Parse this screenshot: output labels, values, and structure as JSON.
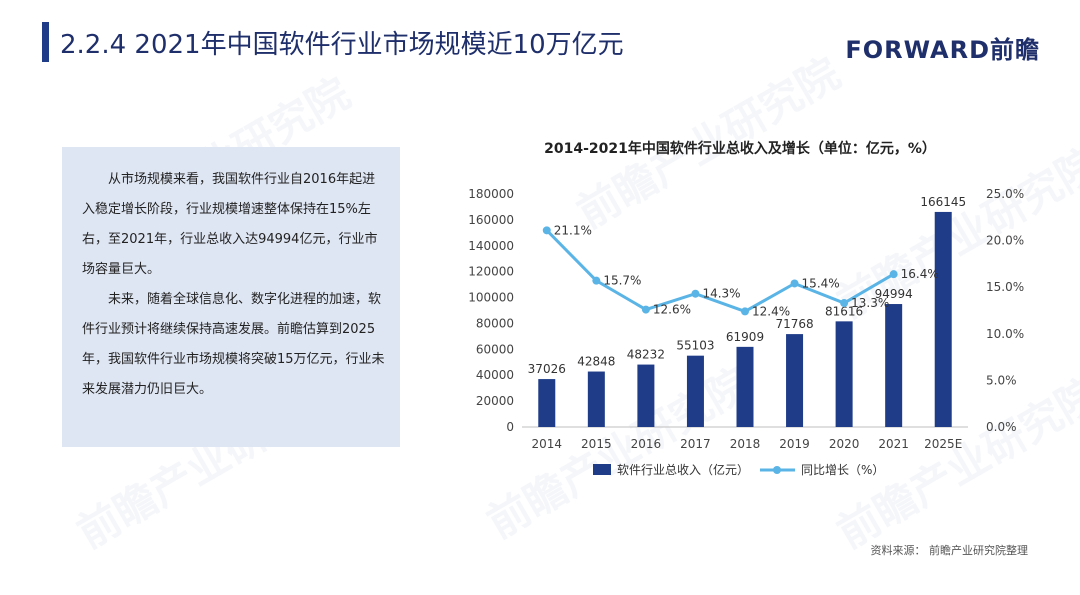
{
  "header": {
    "title": "2.2.4 2021年中国软件行业市场规模近10万亿元",
    "logo": "FORWARD前瞻"
  },
  "textbox": {
    "paragraphs": [
      "从市场规模来看，我国软件行业自2016年起进入稳定增长阶段，行业规模增速整体保持在15%左右，至2021年，行业总收入达94994亿元，行业市场容量巨大。",
      "未来，随着全球信息化、数字化进程的加速，软件行业预计将继续保持高速发展。前瞻估算到2025年，我国软件行业市场规模将突破15万亿元，行业未来发展潜力仍旧巨大。"
    ]
  },
  "footer": {
    "source": "资料来源：  前瞻产业研究院整理"
  },
  "watermark": {
    "text": "前瞻产业研究院"
  },
  "chart_data": {
    "type": "bar",
    "title": "2014-2021年中国软件行业总收入及增长（单位：亿元，%）",
    "categories": [
      "2014",
      "2015",
      "2016",
      "2017",
      "2018",
      "2019",
      "2020",
      "2021",
      "2025E"
    ],
    "series": [
      {
        "name": "软件行业总收入（亿元）",
        "type": "bar",
        "axis": "left",
        "color": "#1f3c88",
        "values": [
          37026,
          42848,
          48232,
          55103,
          61909,
          71768,
          81616,
          94994,
          166145
        ]
      },
      {
        "name": "同比增长（%）",
        "type": "line",
        "axis": "right",
        "color": "#5ab4e5",
        "values": [
          21.1,
          15.7,
          12.6,
          14.3,
          12.4,
          15.4,
          13.3,
          16.4,
          null
        ],
        "labels": [
          "21.1%",
          "15.7%",
          "12.6%",
          "14.3%",
          "12.4%",
          "15.4%",
          "13.3%",
          "16.4%",
          ""
        ]
      }
    ],
    "ylim": [
      0,
      180000
    ],
    "yticks": [
      "0",
      "20000",
      "40000",
      "60000",
      "80000",
      "100000",
      "120000",
      "140000",
      "160000",
      "180000"
    ],
    "y2lim": [
      0,
      25
    ],
    "y2ticks": [
      "0.0%",
      "5.0%",
      "10.0%",
      "15.0%",
      "20.0%",
      "25.0%"
    ],
    "legend_position": "bottom",
    "grid": false
  }
}
